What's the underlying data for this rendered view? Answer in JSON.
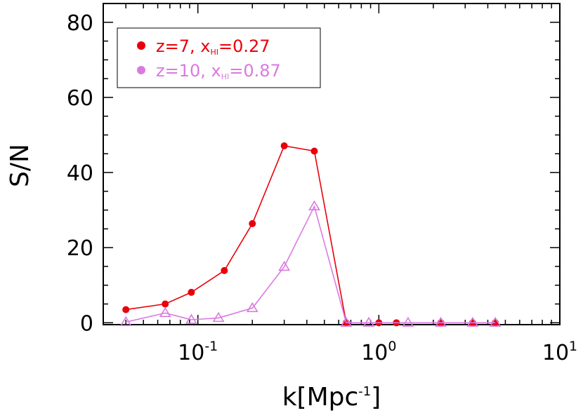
{
  "chart_data": {
    "type": "line",
    "xlabel": "k[Mpc",
    "xlabel_sup": "-1",
    "xlabel_close": "]",
    "ylabel": "S/N",
    "xscale": "log",
    "xlim": [
      0.03,
      10
    ],
    "ylim": [
      -0.5,
      85
    ],
    "x_ticks": [
      {
        "value": 0.1,
        "base": "10",
        "exp": "-1"
      },
      {
        "value": 1,
        "base": "10",
        "exp": "0"
      },
      {
        "value": 10,
        "base": "10",
        "exp": "1"
      }
    ],
    "y_ticks": [
      {
        "value": 0,
        "label": "0"
      },
      {
        "value": 20,
        "label": "20"
      },
      {
        "value": 40,
        "label": "40"
      },
      {
        "value": 60,
        "label": "60"
      },
      {
        "value": 80,
        "label": "80"
      }
    ],
    "legend_position": "top-left",
    "series": [
      {
        "label_prefix": "z=7, x",
        "label_sub": "HI",
        "label_suffix": "=0.27",
        "color": "#e8000b",
        "marker": "circle",
        "x": [
          0.04,
          0.066,
          0.092,
          0.14,
          0.2,
          0.3,
          0.44,
          0.66,
          1.0,
          1.25,
          2.2,
          3.3,
          4.4
        ],
        "y": [
          3.5,
          5.0,
          8.1,
          13.9,
          26.4,
          47.1,
          45.7,
          0.0,
          0.0,
          0.0,
          0.0,
          0.0,
          0.0
        ]
      },
      {
        "label_prefix": "z=10, x",
        "label_sub": "HI",
        "label_suffix": "=0.87",
        "color": "#d97ae0",
        "marker": "triangle",
        "x": [
          0.04,
          0.066,
          0.092,
          0.13,
          0.2,
          0.3,
          0.44,
          0.66,
          0.88,
          1.45,
          2.2,
          3.3,
          4.4
        ],
        "y": [
          0.2,
          2.6,
          0.8,
          1.3,
          3.9,
          14.9,
          31.0,
          0.0,
          0.0,
          0.0,
          0.0,
          0.0,
          0.0
        ]
      }
    ]
  }
}
